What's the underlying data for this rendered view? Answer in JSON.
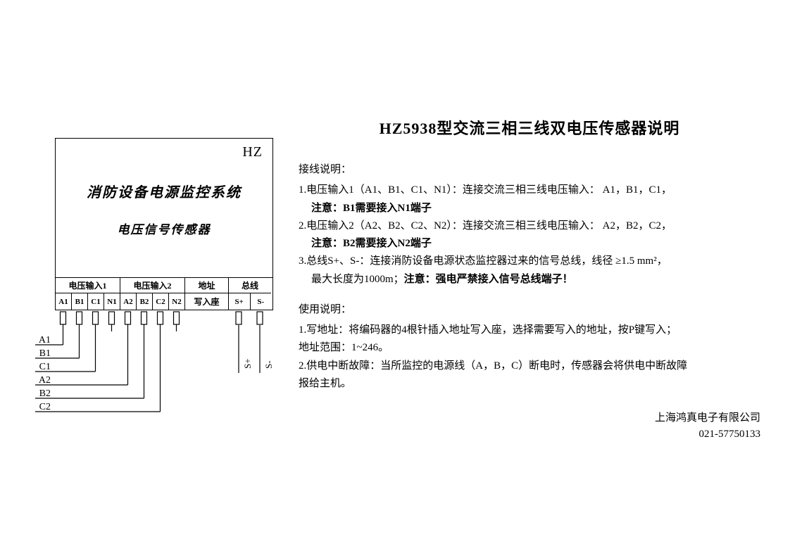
{
  "title": "HZ5938型交流三相三线双电压传感器说明",
  "device": {
    "brand": "HZ",
    "line1": "消防设备电源监控系统",
    "line2": "电压信号传感器",
    "groups": [
      {
        "head": "电压输入1",
        "cells": [
          "A1",
          "B1",
          "C1",
          "N1"
        ],
        "width": 92
      },
      {
        "head": "电压输入2",
        "cells": [
          "A2",
          "B2",
          "C2",
          "N2"
        ],
        "width": 92
      },
      {
        "head": "地址",
        "cells": [
          "写入座"
        ],
        "width": 62,
        "addr": true
      },
      {
        "head": "总线",
        "cells": [
          "S+",
          "S-"
        ],
        "width": 60
      }
    ]
  },
  "wires": {
    "left_labels": [
      "A1",
      "B1",
      "C1",
      "A2",
      "B2",
      "C2"
    ],
    "bus_labels": [
      "S+",
      "S-"
    ]
  },
  "sections": {
    "wiring_head": "接线说明：",
    "wiring": [
      {
        "n": "1.",
        "text": "电压输入1（A1、B1、C1、N1）：连接交流三相三线电压输入： A1，B1，C1，",
        "bold_tail": "注意：B1需要接入N1端子"
      },
      {
        "n": "2.",
        "text": "电压输入2（A2、B2、C2、N2）：连接交流三相三线电压输入： A2，B2，C2，",
        "bold_tail": "注意：B2需要接入N2端子"
      },
      {
        "n": "3.",
        "text": "总线S+、S-：连接消防设备电源状态监控器过来的信号总线，线径 ≥1.5 mm²，",
        "tail": "最大长度为1000m；",
        "bold_tail": "注意：强电严禁接入信号总线端子！"
      }
    ],
    "usage_head": "使用说明：",
    "usage": [
      {
        "n": "1.",
        "text": "写地址：将编码器的4根针插入地址写入座，选择需要写入的地址，按P键写入；",
        "sub": "地址范围：1~246。"
      },
      {
        "n": "2.",
        "text": "供电中断故障：当所监控的电源线（A，B，C）断电时，传感器会将供电中断故障",
        "sub": "报给主机。"
      }
    ]
  },
  "company": {
    "name": "上海鸿真电子有限公司",
    "tel": "021-57750133"
  },
  "colors": {
    "fg": "#000000",
    "bg": "#ffffff"
  }
}
